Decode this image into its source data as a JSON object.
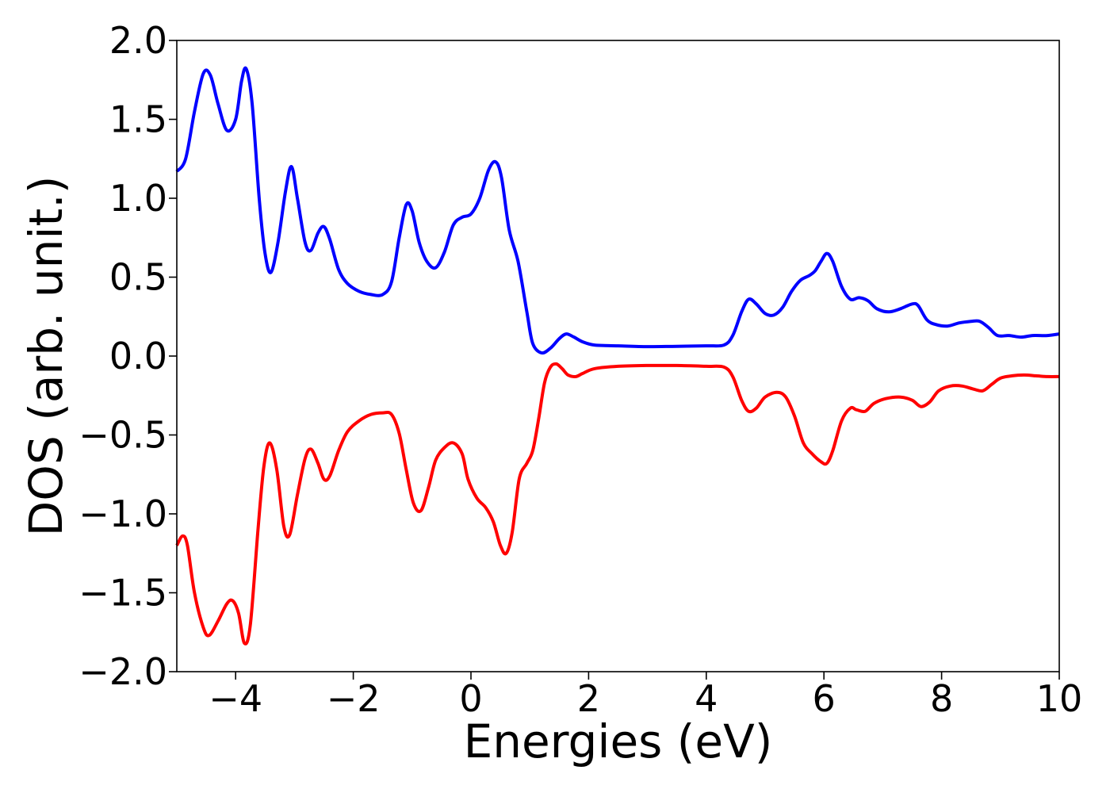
{
  "chart_data": {
    "type": "line",
    "title": "",
    "xlabel": "Energies (eV)",
    "ylabel": "DOS (arb. unit.)",
    "xlim": [
      -5,
      10
    ],
    "ylim": [
      -2.0,
      2.0
    ],
    "grid": false,
    "legend": "none",
    "x_ticks": [
      {
        "value": -4,
        "label": "−4"
      },
      {
        "value": -2,
        "label": "−2"
      },
      {
        "value": 0,
        "label": "0"
      },
      {
        "value": 2,
        "label": "2"
      },
      {
        "value": 4,
        "label": "4"
      },
      {
        "value": 6,
        "label": "6"
      },
      {
        "value": 8,
        "label": "8"
      },
      {
        "value": 10,
        "label": "10"
      }
    ],
    "y_ticks": [
      {
        "value": 2.0,
        "label": "2.0"
      },
      {
        "value": 1.5,
        "label": "1.5"
      },
      {
        "value": 1.0,
        "label": "1.0"
      },
      {
        "value": 0.5,
        "label": "0.5"
      },
      {
        "value": 0.0,
        "label": "0.0"
      },
      {
        "value": -0.5,
        "label": "−0.5"
      },
      {
        "value": -1.0,
        "label": "−1.0"
      },
      {
        "value": -1.5,
        "label": "−1.5"
      },
      {
        "value": -2.0,
        "label": "−2.0"
      }
    ],
    "series": [
      {
        "color": "#0000ff",
        "points": [
          [
            -5.0,
            1.17
          ],
          [
            -4.85,
            1.25
          ],
          [
            -4.7,
            1.55
          ],
          [
            -4.55,
            1.79
          ],
          [
            -4.43,
            1.78
          ],
          [
            -4.3,
            1.6
          ],
          [
            -4.15,
            1.43
          ],
          [
            -4.0,
            1.5
          ],
          [
            -3.9,
            1.74
          ],
          [
            -3.82,
            1.82
          ],
          [
            -3.72,
            1.6
          ],
          [
            -3.6,
            1.0
          ],
          [
            -3.5,
            0.65
          ],
          [
            -3.4,
            0.53
          ],
          [
            -3.28,
            0.72
          ],
          [
            -3.15,
            1.05
          ],
          [
            -3.05,
            1.2
          ],
          [
            -2.95,
            1.0
          ],
          [
            -2.82,
            0.72
          ],
          [
            -2.72,
            0.67
          ],
          [
            -2.6,
            0.78
          ],
          [
            -2.5,
            0.82
          ],
          [
            -2.4,
            0.74
          ],
          [
            -2.25,
            0.55
          ],
          [
            -2.1,
            0.46
          ],
          [
            -1.9,
            0.41
          ],
          [
            -1.7,
            0.39
          ],
          [
            -1.5,
            0.39
          ],
          [
            -1.35,
            0.47
          ],
          [
            -1.22,
            0.75
          ],
          [
            -1.1,
            0.96
          ],
          [
            -1.0,
            0.92
          ],
          [
            -0.88,
            0.72
          ],
          [
            -0.75,
            0.6
          ],
          [
            -0.6,
            0.56
          ],
          [
            -0.45,
            0.66
          ],
          [
            -0.3,
            0.83
          ],
          [
            -0.15,
            0.88
          ],
          [
            0.0,
            0.9
          ],
          [
            0.15,
            1.0
          ],
          [
            0.3,
            1.18
          ],
          [
            0.42,
            1.23
          ],
          [
            0.52,
            1.13
          ],
          [
            0.65,
            0.8
          ],
          [
            0.8,
            0.6
          ],
          [
            0.95,
            0.28
          ],
          [
            1.05,
            0.08
          ],
          [
            1.2,
            0.02
          ],
          [
            1.35,
            0.05
          ],
          [
            1.5,
            0.11
          ],
          [
            1.62,
            0.14
          ],
          [
            1.75,
            0.12
          ],
          [
            1.9,
            0.09
          ],
          [
            2.1,
            0.07
          ],
          [
            2.5,
            0.065
          ],
          [
            3.0,
            0.06
          ],
          [
            3.5,
            0.062
          ],
          [
            4.0,
            0.065
          ],
          [
            4.3,
            0.07
          ],
          [
            4.45,
            0.13
          ],
          [
            4.6,
            0.28
          ],
          [
            4.72,
            0.36
          ],
          [
            4.85,
            0.33
          ],
          [
            5.0,
            0.27
          ],
          [
            5.15,
            0.26
          ],
          [
            5.3,
            0.31
          ],
          [
            5.45,
            0.41
          ],
          [
            5.6,
            0.48
          ],
          [
            5.75,
            0.51
          ],
          [
            5.85,
            0.54
          ],
          [
            5.95,
            0.6
          ],
          [
            6.05,
            0.65
          ],
          [
            6.15,
            0.6
          ],
          [
            6.3,
            0.44
          ],
          [
            6.45,
            0.36
          ],
          [
            6.6,
            0.37
          ],
          [
            6.75,
            0.35
          ],
          [
            6.9,
            0.3
          ],
          [
            7.1,
            0.28
          ],
          [
            7.3,
            0.3
          ],
          [
            7.5,
            0.33
          ],
          [
            7.6,
            0.32
          ],
          [
            7.75,
            0.23
          ],
          [
            7.9,
            0.2
          ],
          [
            8.1,
            0.19
          ],
          [
            8.3,
            0.21
          ],
          [
            8.5,
            0.22
          ],
          [
            8.65,
            0.22
          ],
          [
            8.8,
            0.18
          ],
          [
            8.95,
            0.13
          ],
          [
            9.15,
            0.13
          ],
          [
            9.35,
            0.12
          ],
          [
            9.55,
            0.13
          ],
          [
            9.8,
            0.13
          ],
          [
            10.0,
            0.14
          ]
        ]
      },
      {
        "color": "#ff0000",
        "points": [
          [
            -5.0,
            -1.2
          ],
          [
            -4.9,
            -1.14
          ],
          [
            -4.82,
            -1.2
          ],
          [
            -4.7,
            -1.5
          ],
          [
            -4.55,
            -1.72
          ],
          [
            -4.45,
            -1.77
          ],
          [
            -4.3,
            -1.68
          ],
          [
            -4.15,
            -1.57
          ],
          [
            -4.05,
            -1.55
          ],
          [
            -3.95,
            -1.63
          ],
          [
            -3.85,
            -1.82
          ],
          [
            -3.75,
            -1.7
          ],
          [
            -3.62,
            -1.1
          ],
          [
            -3.52,
            -0.7
          ],
          [
            -3.42,
            -0.55
          ],
          [
            -3.3,
            -0.72
          ],
          [
            -3.18,
            -1.08
          ],
          [
            -3.08,
            -1.13
          ],
          [
            -2.95,
            -0.88
          ],
          [
            -2.82,
            -0.65
          ],
          [
            -2.72,
            -0.59
          ],
          [
            -2.6,
            -0.68
          ],
          [
            -2.5,
            -0.78
          ],
          [
            -2.4,
            -0.76
          ],
          [
            -2.25,
            -0.6
          ],
          [
            -2.1,
            -0.48
          ],
          [
            -1.9,
            -0.41
          ],
          [
            -1.7,
            -0.37
          ],
          [
            -1.5,
            -0.36
          ],
          [
            -1.35,
            -0.37
          ],
          [
            -1.22,
            -0.49
          ],
          [
            -1.1,
            -0.72
          ],
          [
            -0.98,
            -0.93
          ],
          [
            -0.85,
            -0.98
          ],
          [
            -0.72,
            -0.83
          ],
          [
            -0.6,
            -0.66
          ],
          [
            -0.45,
            -0.58
          ],
          [
            -0.3,
            -0.55
          ],
          [
            -0.15,
            -0.62
          ],
          [
            -0.05,
            -0.78
          ],
          [
            0.1,
            -0.9
          ],
          [
            0.25,
            -0.96
          ],
          [
            0.38,
            -1.05
          ],
          [
            0.5,
            -1.2
          ],
          [
            0.6,
            -1.25
          ],
          [
            0.7,
            -1.12
          ],
          [
            0.82,
            -0.78
          ],
          [
            0.95,
            -0.68
          ],
          [
            1.05,
            -0.6
          ],
          [
            1.15,
            -0.4
          ],
          [
            1.25,
            -0.17
          ],
          [
            1.35,
            -0.07
          ],
          [
            1.45,
            -0.05
          ],
          [
            1.55,
            -0.08
          ],
          [
            1.65,
            -0.12
          ],
          [
            1.78,
            -0.13
          ],
          [
            1.9,
            -0.11
          ],
          [
            2.1,
            -0.08
          ],
          [
            2.5,
            -0.065
          ],
          [
            3.0,
            -0.06
          ],
          [
            3.5,
            -0.06
          ],
          [
            4.0,
            -0.065
          ],
          [
            4.3,
            -0.07
          ],
          [
            4.45,
            -0.13
          ],
          [
            4.6,
            -0.28
          ],
          [
            4.72,
            -0.35
          ],
          [
            4.85,
            -0.33
          ],
          [
            5.0,
            -0.26
          ],
          [
            5.2,
            -0.23
          ],
          [
            5.35,
            -0.26
          ],
          [
            5.5,
            -0.38
          ],
          [
            5.65,
            -0.55
          ],
          [
            5.8,
            -0.62
          ],
          [
            5.95,
            -0.67
          ],
          [
            6.05,
            -0.68
          ],
          [
            6.15,
            -0.6
          ],
          [
            6.3,
            -0.41
          ],
          [
            6.45,
            -0.33
          ],
          [
            6.55,
            -0.34
          ],
          [
            6.7,
            -0.35
          ],
          [
            6.85,
            -0.3
          ],
          [
            7.05,
            -0.27
          ],
          [
            7.3,
            -0.26
          ],
          [
            7.5,
            -0.28
          ],
          [
            7.65,
            -0.32
          ],
          [
            7.8,
            -0.29
          ],
          [
            7.95,
            -0.22
          ],
          [
            8.15,
            -0.19
          ],
          [
            8.35,
            -0.19
          ],
          [
            8.55,
            -0.21
          ],
          [
            8.7,
            -0.22
          ],
          [
            8.85,
            -0.18
          ],
          [
            9.0,
            -0.14
          ],
          [
            9.2,
            -0.125
          ],
          [
            9.4,
            -0.12
          ],
          [
            9.6,
            -0.125
          ],
          [
            9.8,
            -0.13
          ],
          [
            10.0,
            -0.13
          ]
        ]
      }
    ]
  }
}
